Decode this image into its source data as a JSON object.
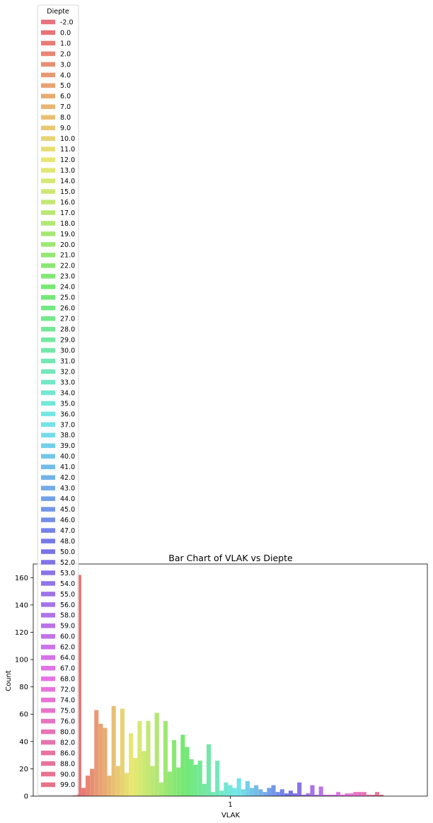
{
  "chart_data": {
    "type": "bar",
    "title": "Bar Chart of VLAK vs Diepte",
    "xlabel": "VLAK",
    "ylabel": "Count",
    "categories": [
      "1"
    ],
    "ylim": [
      0,
      170
    ],
    "yticks": [
      0,
      20,
      40,
      60,
      80,
      100,
      120,
      140,
      160
    ],
    "legend": {
      "title": "Diepte",
      "placement": "upper-left"
    },
    "grid": false,
    "series": [
      {
        "name": "-2.0",
        "value": 1
      },
      {
        "name": "0.0",
        "value": 162
      },
      {
        "name": "1.0",
        "value": 6
      },
      {
        "name": "2.0",
        "value": 15
      },
      {
        "name": "3.0",
        "value": 20
      },
      {
        "name": "4.0",
        "value": 63
      },
      {
        "name": "5.0",
        "value": 53
      },
      {
        "name": "6.0",
        "value": 50
      },
      {
        "name": "7.0",
        "value": 15
      },
      {
        "name": "8.0",
        "value": 66
      },
      {
        "name": "9.0",
        "value": 22
      },
      {
        "name": "10.0",
        "value": 64
      },
      {
        "name": "11.0",
        "value": 17
      },
      {
        "name": "12.0",
        "value": 46
      },
      {
        "name": "13.0",
        "value": 28
      },
      {
        "name": "14.0",
        "value": 55
      },
      {
        "name": "15.0",
        "value": 33
      },
      {
        "name": "16.0",
        "value": 55
      },
      {
        "name": "17.0",
        "value": 22
      },
      {
        "name": "18.0",
        "value": 61
      },
      {
        "name": "19.0",
        "value": 10
      },
      {
        "name": "20.0",
        "value": 55
      },
      {
        "name": "21.0",
        "value": 18
      },
      {
        "name": "22.0",
        "value": 41
      },
      {
        "name": "23.0",
        "value": 21
      },
      {
        "name": "24.0",
        "value": 45
      },
      {
        "name": "25.0",
        "value": 36
      },
      {
        "name": "26.0",
        "value": 27
      },
      {
        "name": "27.0",
        "value": 23
      },
      {
        "name": "28.0",
        "value": 26
      },
      {
        "name": "29.0",
        "value": 9
      },
      {
        "name": "30.0",
        "value": 38
      },
      {
        "name": "31.0",
        "value": 3
      },
      {
        "name": "32.0",
        "value": 26
      },
      {
        "name": "33.0",
        "value": 4
      },
      {
        "name": "34.0",
        "value": 10
      },
      {
        "name": "35.0",
        "value": 8
      },
      {
        "name": "36.0",
        "value": 6
      },
      {
        "name": "37.0",
        "value": 13
      },
      {
        "name": "38.0",
        "value": 5
      },
      {
        "name": "39.0",
        "value": 11
      },
      {
        "name": "40.0",
        "value": 6
      },
      {
        "name": "41.0",
        "value": 8
      },
      {
        "name": "42.0",
        "value": 5
      },
      {
        "name": "43.0",
        "value": 3
      },
      {
        "name": "44.0",
        "value": 6
      },
      {
        "name": "45.0",
        "value": 8
      },
      {
        "name": "46.0",
        "value": 3
      },
      {
        "name": "47.0",
        "value": 5
      },
      {
        "name": "48.0",
        "value": 2
      },
      {
        "name": "50.0",
        "value": 4
      },
      {
        "name": "52.0",
        "value": 2
      },
      {
        "name": "53.0",
        "value": 10
      },
      {
        "name": "54.0",
        "value": 1
      },
      {
        "name": "55.0",
        "value": 2
      },
      {
        "name": "56.0",
        "value": 8
      },
      {
        "name": "58.0",
        "value": 1
      },
      {
        "name": "59.0",
        "value": 7
      },
      {
        "name": "60.0",
        "value": 1
      },
      {
        "name": "62.0",
        "value": 1
      },
      {
        "name": "64.0",
        "value": 1
      },
      {
        "name": "67.0",
        "value": 3
      },
      {
        "name": "68.0",
        "value": 1
      },
      {
        "name": "72.0",
        "value": 2
      },
      {
        "name": "74.0",
        "value": 2
      },
      {
        "name": "75.0",
        "value": 3
      },
      {
        "name": "76.0",
        "value": 3
      },
      {
        "name": "80.0",
        "value": 3
      },
      {
        "name": "82.0",
        "value": 1
      },
      {
        "name": "86.0",
        "value": 1
      },
      {
        "name": "88.0",
        "value": 3
      },
      {
        "name": "90.0",
        "value": 1
      },
      {
        "name": "99.0",
        "value": 0
      }
    ]
  }
}
